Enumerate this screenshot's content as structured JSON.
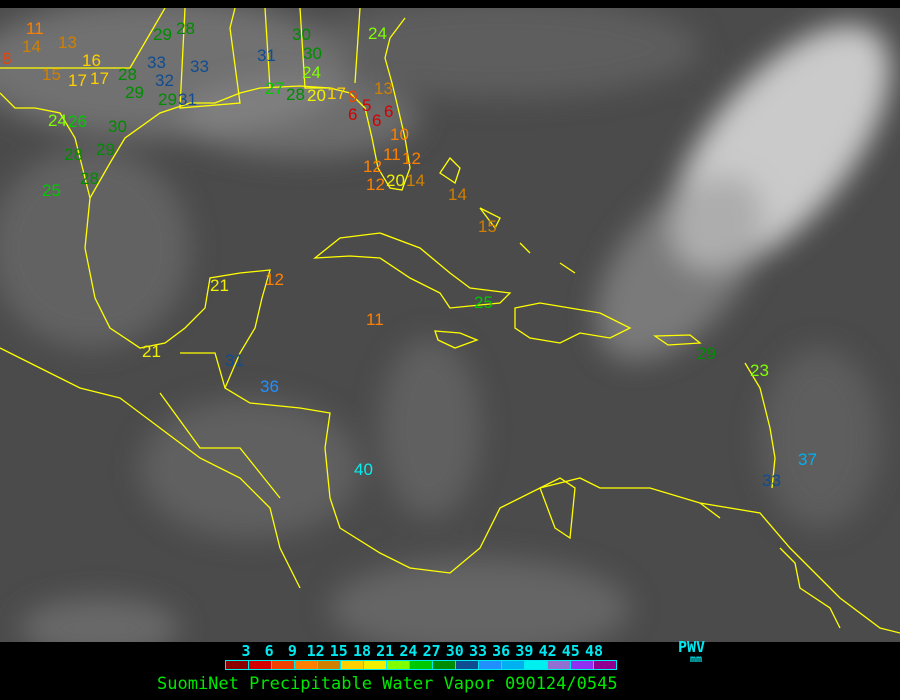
{
  "title": "SuomiNet Precipitable Water Vapor 090124/0545",
  "legend": {
    "unit_label": "PWV",
    "unit": "mm",
    "ticks": [
      "3",
      "6",
      "9",
      "12",
      "15",
      "18",
      "21",
      "24",
      "27",
      "30",
      "33",
      "36",
      "39",
      "42",
      "45",
      "48"
    ],
    "colors": [
      "#8b0000",
      "#d40000",
      "#f04000",
      "#ff8000",
      "#d08000",
      "#ffd000",
      "#f0f000",
      "#80ff00",
      "#00c800",
      "#008c00",
      "#104c90",
      "#2090ff",
      "#00b0f0",
      "#00f0f0",
      "#9070d0",
      "#9030f0",
      "#900090"
    ]
  },
  "colors": {
    "background": "#4b4b4b",
    "coastline": "#ffff00",
    "frame": "#000000"
  },
  "stations": [
    "8",
    "14",
    "15",
    "17",
    "16",
    "17",
    "13",
    "11",
    "28",
    "29",
    "33",
    "32",
    "29",
    "28",
    "33",
    "29",
    "31",
    "31",
    "30",
    "30",
    "24",
    "24",
    "27",
    "28",
    "20",
    "17",
    "9",
    "6",
    "5",
    "6",
    "6",
    "13",
    "10",
    "11",
    "12",
    "12",
    "12",
    "20",
    "14",
    "14",
    "15",
    "24",
    "26",
    "30",
    "29",
    "28",
    "28",
    "25",
    "21",
    "12",
    "11",
    "25",
    "21",
    "31",
    "36",
    "40",
    "29",
    "23",
    "37",
    "33"
  ]
}
